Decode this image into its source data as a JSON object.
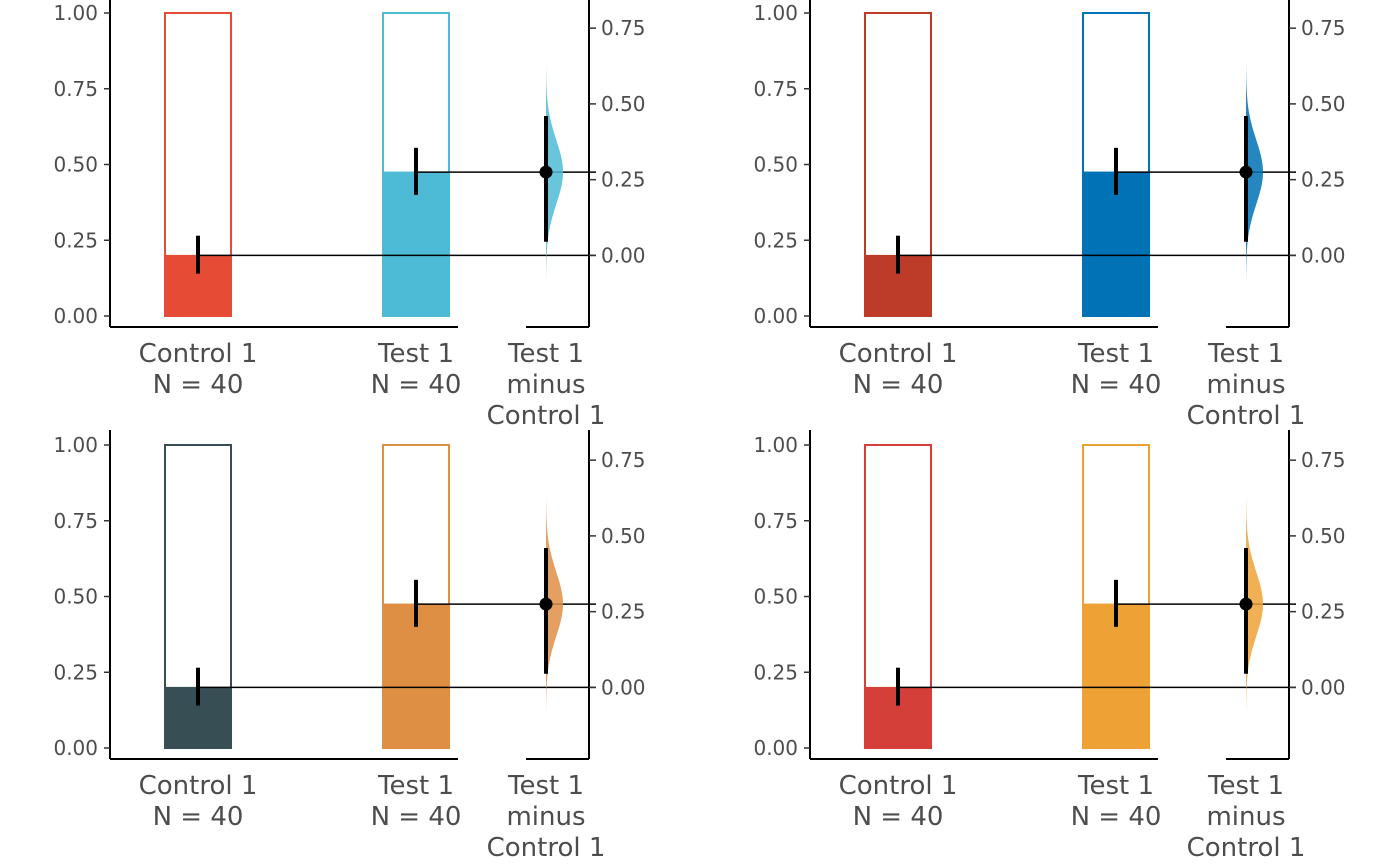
{
  "chart_data": [
    {
      "type": "bar",
      "panel": "top-left",
      "left_axis": {
        "ylim": [
          0,
          1
        ],
        "ticks": [
          "0.00",
          "0.25",
          "0.50",
          "0.75",
          "1.00"
        ]
      },
      "right_axis": {
        "ylim": [
          -0.2,
          0.8
        ],
        "ticks": [
          "0.00",
          "0.25",
          "0.50",
          "0.75"
        ]
      },
      "groups": [
        {
          "label": "Control 1",
          "n_label": "N = 40",
          "proportion": 0.2,
          "ci": [
            0.14,
            0.265
          ],
          "color": "#E64B35"
        },
        {
          "label": "Test 1",
          "n_label": "N = 40",
          "proportion": 0.475,
          "ci": [
            0.4,
            0.555
          ],
          "color": "#4DBBD5"
        }
      ],
      "delta": {
        "label_lines": [
          "Test 1",
          "minus",
          "Control 1"
        ],
        "value": 0.275,
        "ci": [
          0.045,
          0.46
        ],
        "color": "#4DBBD5"
      }
    },
    {
      "type": "bar",
      "panel": "top-right",
      "left_axis": {
        "ylim": [
          0,
          1
        ],
        "ticks": [
          "0.00",
          "0.25",
          "0.50",
          "0.75",
          "1.00"
        ]
      },
      "right_axis": {
        "ylim": [
          -0.2,
          0.8
        ],
        "ticks": [
          "0.00",
          "0.25",
          "0.50",
          "0.75"
        ]
      },
      "groups": [
        {
          "label": "Control 1",
          "n_label": "N = 40",
          "proportion": 0.2,
          "ci": [
            0.14,
            0.265
          ],
          "color": "#BC3C29"
        },
        {
          "label": "Test 1",
          "n_label": "N = 40",
          "proportion": 0.475,
          "ci": [
            0.4,
            0.555
          ],
          "color": "#0072B5"
        }
      ],
      "delta": {
        "label_lines": [
          "Test 1",
          "minus",
          "Control 1"
        ],
        "value": 0.275,
        "ci": [
          0.045,
          0.46
        ],
        "color": "#0072B5"
      }
    },
    {
      "type": "bar",
      "panel": "bottom-left",
      "left_axis": {
        "ylim": [
          0,
          1
        ],
        "ticks": [
          "0.00",
          "0.25",
          "0.50",
          "0.75",
          "1.00"
        ]
      },
      "right_axis": {
        "ylim": [
          -0.2,
          0.8
        ],
        "ticks": [
          "0.00",
          "0.25",
          "0.50",
          "0.75"
        ]
      },
      "groups": [
        {
          "label": "Control 1",
          "n_label": "N = 40",
          "proportion": 0.2,
          "ci": [
            0.14,
            0.265
          ],
          "color": "#374E55"
        },
        {
          "label": "Test 1",
          "n_label": "N = 40",
          "proportion": 0.475,
          "ci": [
            0.4,
            0.555
          ],
          "color": "#DF8F44"
        }
      ],
      "delta": {
        "label_lines": [
          "Test 1",
          "minus",
          "Control 1"
        ],
        "value": 0.275,
        "ci": [
          0.045,
          0.46
        ],
        "color": "#DF8F44"
      }
    },
    {
      "type": "bar",
      "panel": "bottom-right",
      "left_axis": {
        "ylim": [
          0,
          1
        ],
        "ticks": [
          "0.00",
          "0.25",
          "0.50",
          "0.75",
          "1.00"
        ]
      },
      "right_axis": {
        "ylim": [
          -0.2,
          0.8
        ],
        "ticks": [
          "0.00",
          "0.25",
          "0.50",
          "0.75"
        ]
      },
      "groups": [
        {
          "label": "Control 1",
          "n_label": "N = 40",
          "proportion": 0.2,
          "ci": [
            0.14,
            0.265
          ],
          "color": "#D43F3A"
        },
        {
          "label": "Test 1",
          "n_label": "N = 40",
          "proportion": 0.475,
          "ci": [
            0.4,
            0.555
          ],
          "color": "#EEA236"
        }
      ],
      "delta": {
        "label_lines": [
          "Test 1",
          "minus",
          "Control 1"
        ],
        "value": 0.275,
        "ci": [
          0.045,
          0.46
        ],
        "color": "#EEA236"
      }
    }
  ]
}
